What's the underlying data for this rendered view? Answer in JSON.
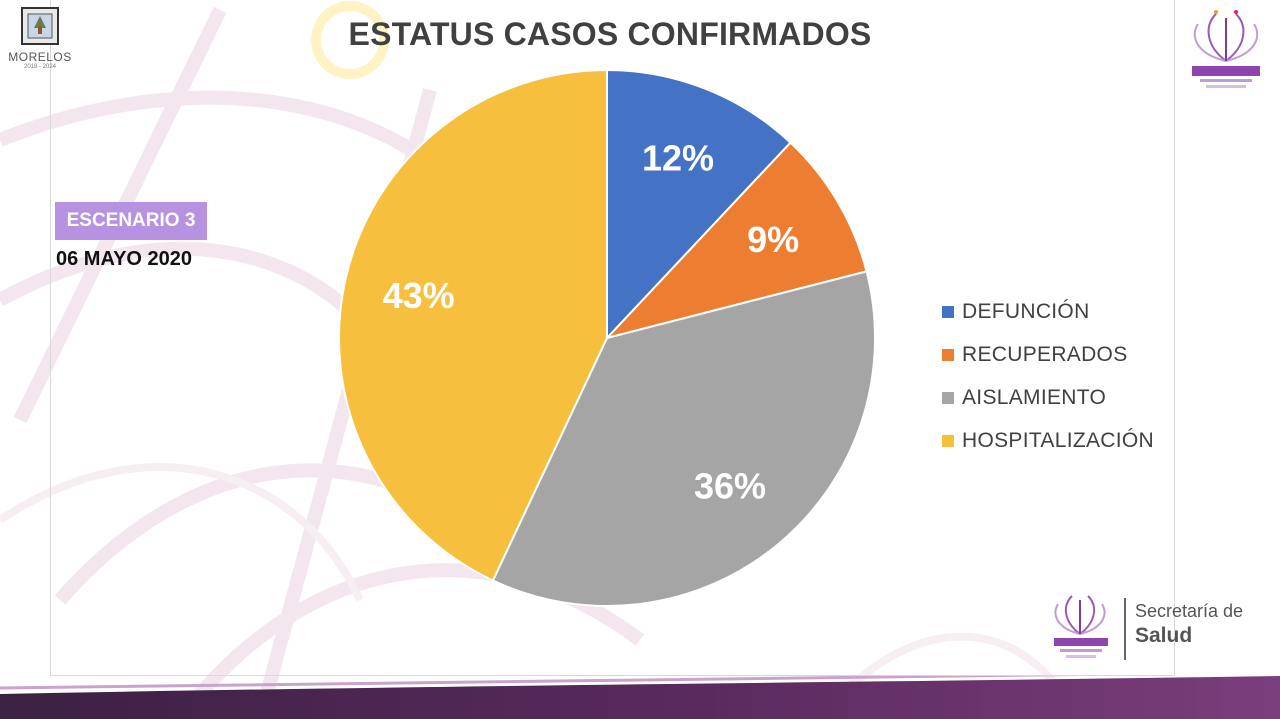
{
  "header": {
    "title": "ESTATUS CASOS CONFIRMADOS",
    "left_logo": {
      "name": "MORELOS",
      "years": "2018 - 2024"
    }
  },
  "scenario": {
    "label": "ESCENARIO 3",
    "date": "06 MAYO 2020"
  },
  "chart_data": {
    "type": "pie",
    "title": "ESTATUS CASOS CONFIRMADOS",
    "legend_position": "right",
    "slices": [
      {
        "name": "DEFUNCIÓN",
        "value": 12,
        "label": "12%",
        "color": "#4472c4"
      },
      {
        "name": "RECUPERADOS",
        "value": 9,
        "label": "9%",
        "color": "#ed7d31"
      },
      {
        "name": "AISLAMIENTO",
        "value": 36,
        "label": "36%",
        "color": "#a5a5a5"
      },
      {
        "name": "HOSPITALIZACIÓN",
        "value": 43,
        "label": "43%",
        "color": "#f6bf3e"
      }
    ]
  },
  "footer": {
    "secretaria": "Secretaría de",
    "salud": "Salud"
  },
  "colors": {
    "accent_purple": "#b792e0",
    "band_dark": "#3b2142",
    "band_mid": "#7a3e7c"
  }
}
